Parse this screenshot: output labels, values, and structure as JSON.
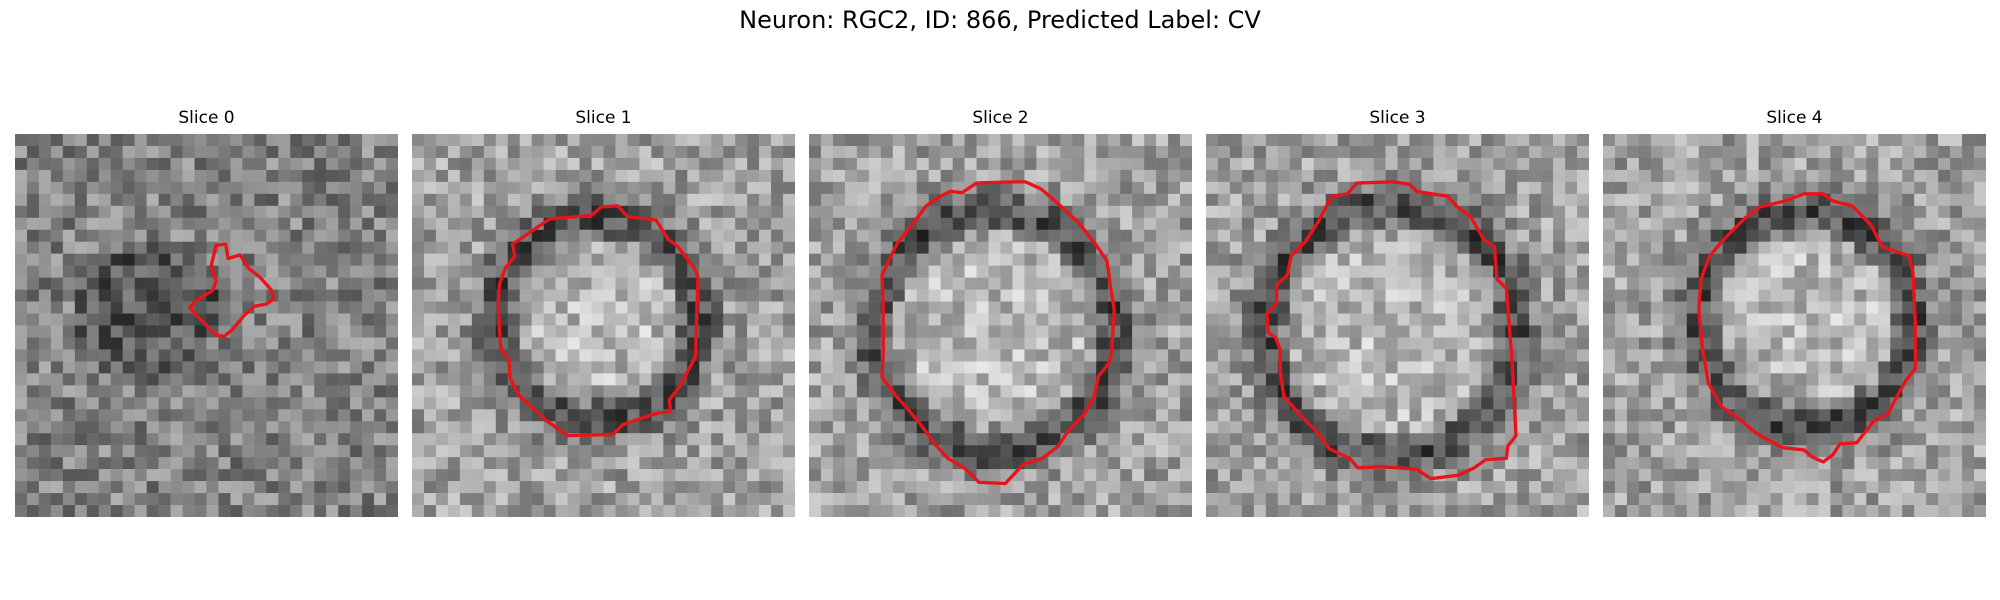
{
  "figure": {
    "title": "Neuron: RGC2, ID: 866, Predicted Label: CV"
  },
  "outline_color": "#e8141a",
  "slices": [
    {
      "title": "Slice 0"
    },
    {
      "title": "Slice 1"
    },
    {
      "title": "Slice 2"
    },
    {
      "title": "Slice 3"
    },
    {
      "title": "Slice 4"
    }
  ]
}
